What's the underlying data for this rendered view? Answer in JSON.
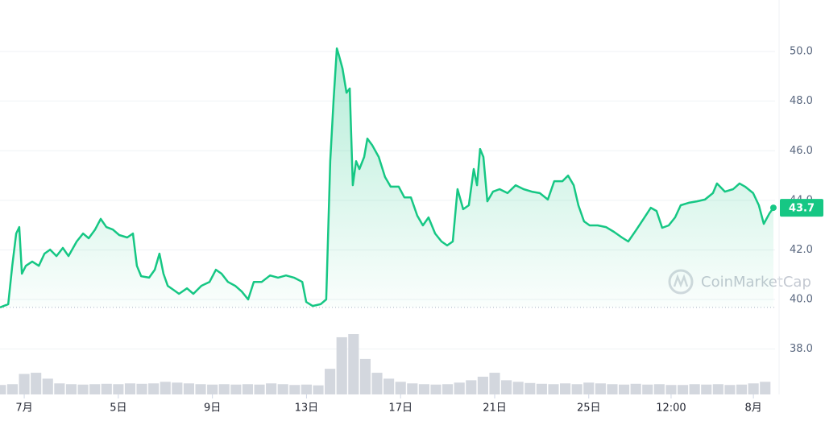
{
  "chart_data": {
    "type": "area",
    "x": [
      -1.03,
      -0.68,
      -0.51,
      -0.34,
      -0.21,
      -0.1,
      0.07,
      0.34,
      0.62,
      0.86,
      1.1,
      1.37,
      1.64,
      1.88,
      2.23,
      2.5,
      2.74,
      3.01,
      3.25,
      3.49,
      3.77,
      4.04,
      4.38,
      4.62,
      4.79,
      4.97,
      5.31,
      5.55,
      5.75,
      5.92,
      6.1,
      6.34,
      6.58,
      6.92,
      7.19,
      7.53,
      7.88,
      8.15,
      8.39,
      8.66,
      8.97,
      9.25,
      9.52,
      9.76,
      10.1,
      10.45,
      10.79,
      11.13,
      11.47,
      11.82,
      11.99,
      12.26,
      12.6,
      12.84,
      13.01,
      13.15,
      13.29,
      13.39,
      13.53,
      13.7,
      13.84,
      13.97,
      14.11,
      14.25,
      14.45,
      14.59,
      14.79,
      15.07,
      15.34,
      15.58,
      15.92,
      16.16,
      16.44,
      16.71,
      16.95,
      17.19,
      17.47,
      17.74,
      17.98,
      18.22,
      18.42,
      18.66,
      18.9,
      19.11,
      19.25,
      19.38,
      19.52,
      19.69,
      19.93,
      20.21,
      20.55,
      20.89,
      21.23,
      21.58,
      21.92,
      22.26,
      22.53,
      22.88,
      23.12,
      23.36,
      23.56,
      23.8,
      24.04,
      24.38,
      24.73,
      25.07,
      25.41,
      25.68,
      26.03,
      26.37,
      26.64,
      26.88,
      27.12,
      27.4,
      27.67,
      27.91,
      28.25,
      28.6,
      28.94,
      29.28,
      29.45,
      29.79,
      30.14,
      30.41,
      30.65,
      30.99,
      31.23,
      31.44,
      31.68,
      31.85
    ],
    "values": [
      39.68,
      39.81,
      41.36,
      42.66,
      42.92,
      41.04,
      41.36,
      41.53,
      41.36,
      41.85,
      42.01,
      41.75,
      42.08,
      41.75,
      42.34,
      42.66,
      42.47,
      42.82,
      43.25,
      42.92,
      42.82,
      42.6,
      42.5,
      42.66,
      41.36,
      40.94,
      40.88,
      41.2,
      41.85,
      41.04,
      40.55,
      40.39,
      40.23,
      40.45,
      40.23,
      40.55,
      40.71,
      41.2,
      41.04,
      40.71,
      40.55,
      40.32,
      40.0,
      40.71,
      40.71,
      40.97,
      40.88,
      40.97,
      40.88,
      40.71,
      39.9,
      39.74,
      39.81,
      40.0,
      45.58,
      48.02,
      50.13,
      49.81,
      49.32,
      48.34,
      48.51,
      44.61,
      45.58,
      45.26,
      45.75,
      46.49,
      46.23,
      45.75,
      44.94,
      44.55,
      44.55,
      44.12,
      44.12,
      43.38,
      42.99,
      43.31,
      42.66,
      42.34,
      42.18,
      42.34,
      44.45,
      43.64,
      43.8,
      45.26,
      44.61,
      46.07,
      45.75,
      43.96,
      44.35,
      44.45,
      44.29,
      44.61,
      44.45,
      44.35,
      44.29,
      44.03,
      44.77,
      44.77,
      45.0,
      44.61,
      43.8,
      43.15,
      42.99,
      42.99,
      42.92,
      42.73,
      42.5,
      42.34,
      42.82,
      43.31,
      43.7,
      43.57,
      42.89,
      42.99,
      43.31,
      43.8,
      43.9,
      43.96,
      44.03,
      44.29,
      44.68,
      44.35,
      44.45,
      44.68,
      44.55,
      44.29,
      43.8,
      43.05,
      43.47,
      43.7
    ],
    "color": "#16c784",
    "volume": {
      "color": "#d3d7de",
      "x": [
        -1,
        -0.5,
        0,
        0.5,
        1,
        1.5,
        2,
        2.5,
        3,
        3.5,
        4,
        4.5,
        5,
        5.5,
        6,
        6.5,
        7,
        7.5,
        8,
        8.5,
        9,
        9.5,
        10,
        10.5,
        11,
        11.5,
        12,
        12.5,
        13,
        13.5,
        14,
        14.5,
        15,
        15.5,
        16,
        16.5,
        17,
        17.5,
        18,
        18.5,
        19,
        19.5,
        20,
        20.5,
        21,
        21.5,
        22,
        22.5,
        23,
        23.5,
        24,
        24.5,
        25,
        25.5,
        26,
        26.5,
        27,
        27.5,
        28,
        28.5,
        29,
        29.5,
        30,
        30.5,
        31,
        31.5
      ],
      "values": [
        2.4,
        2.6,
        5.2,
        5.5,
        4.0,
        2.8,
        2.6,
        2.5,
        2.6,
        2.7,
        2.6,
        2.8,
        2.7,
        2.8,
        3.2,
        3.0,
        2.8,
        2.6,
        2.5,
        2.6,
        2.5,
        2.6,
        2.5,
        2.8,
        2.6,
        2.4,
        2.5,
        2.3,
        6.5,
        14.5,
        15.3,
        9.0,
        5.5,
        4.0,
        3.2,
        2.8,
        2.6,
        2.5,
        2.6,
        3.0,
        3.6,
        4.5,
        5.5,
        3.6,
        3.2,
        2.9,
        2.7,
        2.6,
        2.8,
        2.6,
        3.0,
        2.8,
        2.6,
        2.5,
        2.7,
        2.5,
        2.6,
        2.4,
        2.4,
        2.6,
        2.5,
        2.6,
        2.4,
        2.5,
        2.8,
        3.2
      ]
    },
    "xlim": [
      -1.03,
      31.92
    ],
    "xticks": [
      {
        "value": 0,
        "label": "7月"
      },
      {
        "value": 4,
        "label": "5日"
      },
      {
        "value": 8,
        "label": "9日"
      },
      {
        "value": 12,
        "label": "13日"
      },
      {
        "value": 16,
        "label": "17日"
      },
      {
        "value": 20,
        "label": "21日"
      },
      {
        "value": 24,
        "label": "25日"
      },
      {
        "value": 27.5,
        "label": "12:00"
      },
      {
        "value": 31,
        "label": "8月"
      }
    ],
    "ylim": [
      36.17,
      52.08
    ],
    "yticks": [
      {
        "value": 38,
        "label": "38.0"
      },
      {
        "value": 40,
        "label": "40.0"
      },
      {
        "value": 42,
        "label": "42.0"
      },
      {
        "value": 44,
        "label": "44.0"
      },
      {
        "value": 46,
        "label": "46.0"
      },
      {
        "value": 48,
        "label": "48.0"
      },
      {
        "value": 50,
        "label": "50.0"
      }
    ],
    "y2lim": [
      0,
      100
    ],
    "grid": true,
    "last_price": {
      "value": 43.7,
      "label": "43.7"
    },
    "watermark": "CoinMarketCap"
  }
}
